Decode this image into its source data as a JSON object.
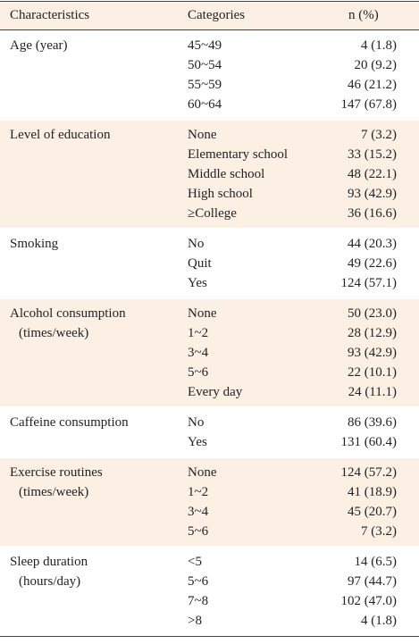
{
  "table": {
    "header": [
      "Characteristics",
      "Categories",
      "n (%)"
    ],
    "groups": [
      {
        "characteristic": [
          "Age (year)"
        ],
        "rows": [
          [
            "45~49",
            "4 (1.8)"
          ],
          [
            "50~54",
            "20 (9.2)"
          ],
          [
            "55~59",
            "46 (21.2)"
          ],
          [
            "60~64",
            "147 (67.8)"
          ]
        ]
      },
      {
        "characteristic": [
          "Level of education"
        ],
        "rows": [
          [
            "None",
            "7 (3.2)"
          ],
          [
            "Elementary school",
            "33 (15.2)"
          ],
          [
            "Middle school",
            "48 (22.1)"
          ],
          [
            "High school",
            "93 (42.9)"
          ],
          [
            "≥College",
            "36 (16.6)"
          ]
        ]
      },
      {
        "characteristic": [
          "Smoking"
        ],
        "rows": [
          [
            "No",
            "44 (20.3)"
          ],
          [
            "Quit",
            "49 (22.6)"
          ],
          [
            "Yes",
            "124 (57.1)"
          ]
        ]
      },
      {
        "characteristic": [
          "Alcohol consumption",
          "(times/week)"
        ],
        "rows": [
          [
            "None",
            "50 (23.0)"
          ],
          [
            "1~2",
            "28 (12.9)"
          ],
          [
            "3~4",
            "93 (42.9)"
          ],
          [
            "5~6",
            "22 (10.1)"
          ],
          [
            "Every day",
            "24 (11.1)"
          ]
        ]
      },
      {
        "characteristic": [
          "Caffeine consumption"
        ],
        "rows": [
          [
            "No",
            "86 (39.6)"
          ],
          [
            "Yes",
            "131 (60.4)"
          ]
        ]
      },
      {
        "characteristic": [
          "Exercise routines",
          "(times/week)"
        ],
        "rows": [
          [
            "None",
            "124 (57.2)"
          ],
          [
            "1~2",
            "41 (18.9)"
          ],
          [
            "3~4",
            "45 (20.7)"
          ],
          [
            "5~6",
            "7 (3.2)"
          ]
        ]
      },
      {
        "characteristic": [
          "Sleep duration",
          "(hours/day)"
        ],
        "rows": [
          [
            "<5",
            "14 (6.5)"
          ],
          [
            "5~6",
            "97 (44.7)"
          ],
          [
            "7~8",
            "102 (47.0)"
          ],
          [
            ">8",
            "4 (1.8)"
          ]
        ]
      }
    ]
  }
}
